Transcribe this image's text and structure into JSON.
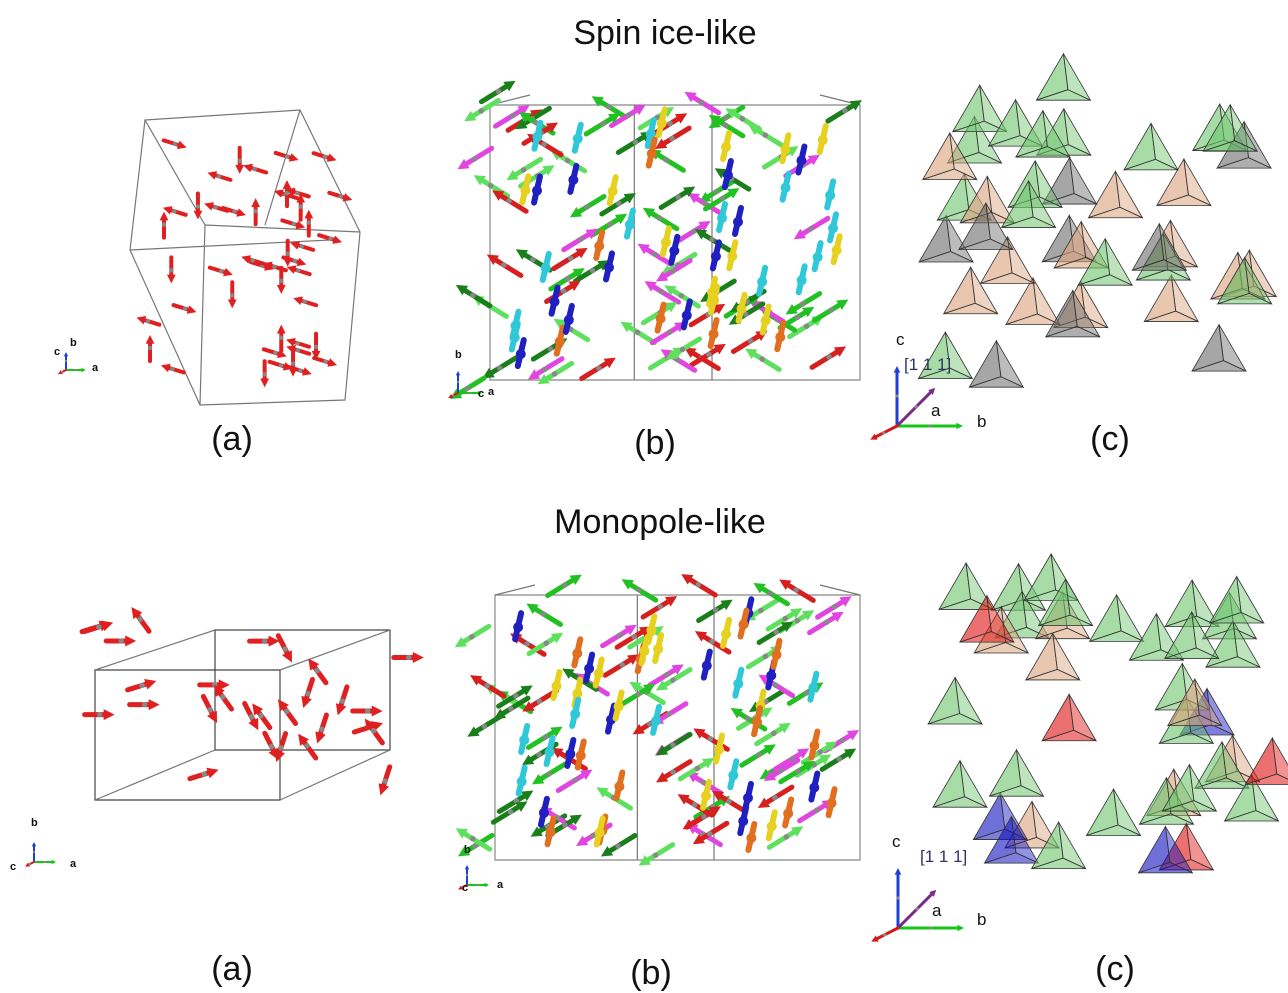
{
  "rows": [
    {
      "title": "Spin ice-like",
      "panels": [
        {
          "label": "(a)",
          "axes": [
            "c",
            "b",
            "a"
          ]
        },
        {
          "label": "(b)",
          "axes": [
            "b",
            "c",
            "a"
          ]
        },
        {
          "label": "(c)",
          "axes": [
            "c",
            "[1 1 1]",
            "a",
            "b"
          ]
        }
      ]
    },
    {
      "title": "Monopole-like",
      "panels": [
        {
          "label": "(a)",
          "axes": [
            "b",
            "c",
            "a"
          ]
        },
        {
          "label": "(b)",
          "axes": [
            "b",
            "c",
            "a"
          ]
        },
        {
          "label": "(c)",
          "axes": [
            "c",
            "[1 1 1]",
            "a",
            "b"
          ]
        }
      ]
    }
  ]
}
